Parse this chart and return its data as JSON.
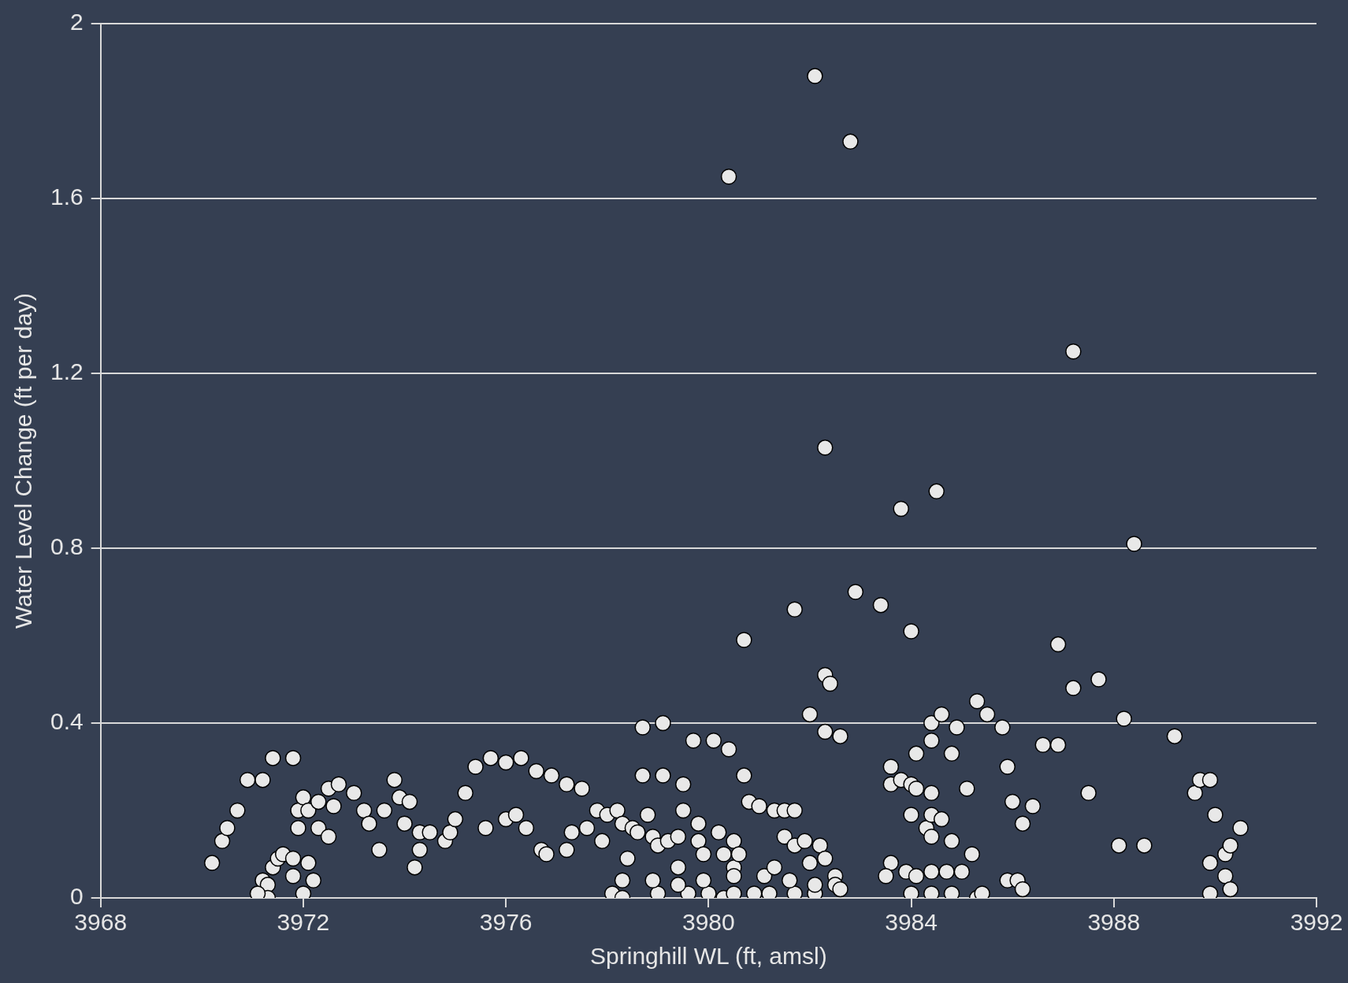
{
  "chart_data": {
    "type": "scatter",
    "xlabel": "Springhill WL (ft, amsl)",
    "ylabel": "Water Level Change (ft per day)",
    "xlim": [
      3968,
      3992
    ],
    "xticks": [
      3968,
      3972,
      3976,
      3980,
      3984,
      3988,
      3992
    ],
    "ylim": [
      0,
      2
    ],
    "yticks": [
      0,
      0.4,
      0.8,
      1.2,
      1.6,
      2
    ],
    "grid": "y",
    "legend": false,
    "marker": "circle",
    "series": [
      {
        "color": "#e8e8e8",
        "x": [
          3970.2,
          3970.4,
          3970.5,
          3970.7,
          3970.9,
          3971.2,
          3971.4,
          3971.8,
          3971.2,
          3971.3,
          3971.4,
          3971.5,
          3971.6,
          3971.8,
          3971.8,
          3972.1,
          3972.2,
          3972.0,
          3971.3,
          3971.1,
          3971.9,
          3971.9,
          3972.0,
          3972.1,
          3972.3,
          3972.3,
          3972.5,
          3972.5,
          3972.6,
          3972.7,
          3973.0,
          3973.2,
          3973.3,
          3973.5,
          3973.6,
          3973.8,
          3973.9,
          3974.0,
          3974.1,
          3974.2,
          3974.3,
          3974.3,
          3974.5,
          3974.8,
          3974.9,
          3975.0,
          3975.2,
          3975.4,
          3975.6,
          3975.7,
          3976.0,
          3976.3,
          3976.0,
          3976.2,
          3976.4,
          3976.6,
          3976.9,
          3976.7,
          3976.8,
          3977.2,
          3977.2,
          3977.5,
          3977.3,
          3977.6,
          3977.8,
          3977.9,
          3978.0,
          3978.2,
          3978.3,
          3978.4,
          3978.3,
          3978.5,
          3978.6,
          3978.7,
          3978.8,
          3978.9,
          3979.1,
          3979.1,
          3978.7,
          3979.0,
          3979.2,
          3979.4,
          3979.5,
          3979.5,
          3979.7,
          3979.8,
          3979.8,
          3980.1,
          3980.4,
          3980.2,
          3980.3,
          3980.5,
          3980.5,
          3980.7,
          3980.8,
          3981.0,
          3981.3,
          3981.5,
          3981.7,
          3981.5,
          3981.7,
          3981.9,
          3982.2,
          3982.3,
          3982.5,
          3982.5,
          3982.6,
          3978.1,
          3978.3,
          3979.0,
          3979.6,
          3980.0,
          3980.3,
          3980.5,
          3980.9,
          3981.2,
          3981.7,
          3982.1,
          3978.9,
          3979.4,
          3979.9,
          3980.5,
          3981.1,
          3981.6,
          3982.1,
          3979.4,
          3979.9,
          3980.6,
          3981.3,
          3982.0,
          3980.4,
          3980.7,
          3981.7,
          3982.1,
          3982.3,
          3982.8,
          3982.9,
          3983.4,
          3982.3,
          3982.4,
          3982.0,
          3982.3,
          3982.6,
          3983.8,
          3984.5,
          3984.0,
          3987.2,
          3988.4,
          3983.6,
          3983.6,
          3983.8,
          3984.1,
          3984.0,
          3984.1,
          3984.4,
          3984.4,
          3984.4,
          3984.6,
          3984.9,
          3984.8,
          3984.0,
          3984.3,
          3984.4,
          3984.6,
          3984.4,
          3984.8,
          3985.1,
          3983.6,
          3983.5,
          3983.9,
          3984.1,
          3984.4,
          3984.7,
          3985.0,
          3984.0,
          3984.4,
          3984.8,
          3985.2,
          3985.3,
          3985.5,
          3985.8,
          3985.9,
          3986.0,
          3986.2,
          3986.4,
          3986.6,
          3986.9,
          3986.9,
          3987.2,
          3987.7,
          3987.5,
          3988.2,
          3985.9,
          3986.1,
          3986.2,
          3985.3,
          3985.4,
          3988.1,
          3988.6,
          3989.2,
          3989.6,
          3989.7,
          3989.9,
          3990.0,
          3989.9,
          3989.9,
          3990.2,
          3990.3,
          3990.5,
          3990.2,
          3990.3
        ],
        "values": [
          0.08,
          0.13,
          0.16,
          0.2,
          0.27,
          0.27,
          0.32,
          0.32,
          0.04,
          0.03,
          0.07,
          0.09,
          0.1,
          0.09,
          0.05,
          0.08,
          0.04,
          0.01,
          0.0,
          0.01,
          0.2,
          0.16,
          0.23,
          0.2,
          0.22,
          0.16,
          0.14,
          0.25,
          0.21,
          0.26,
          0.24,
          0.2,
          0.17,
          0.11,
          0.2,
          0.27,
          0.23,
          0.17,
          0.22,
          0.07,
          0.11,
          0.15,
          0.15,
          0.13,
          0.15,
          0.18,
          0.24,
          0.3,
          0.16,
          0.32,
          0.31,
          0.32,
          0.18,
          0.19,
          0.16,
          0.29,
          0.28,
          0.11,
          0.1,
          0.11,
          0.26,
          0.25,
          0.15,
          0.16,
          0.2,
          0.13,
          0.19,
          0.2,
          0.17,
          0.09,
          0.04,
          0.16,
          0.15,
          0.28,
          0.19,
          0.14,
          0.28,
          0.4,
          0.39,
          0.12,
          0.13,
          0.14,
          0.26,
          0.2,
          0.36,
          0.17,
          0.13,
          0.36,
          0.34,
          0.15,
          0.1,
          0.13,
          0.07,
          0.28,
          0.22,
          0.21,
          0.2,
          0.2,
          0.2,
          0.14,
          0.12,
          0.13,
          0.12,
          0.09,
          0.05,
          0.03,
          0.02,
          0.01,
          0.0,
          0.01,
          0.01,
          0.01,
          0.0,
          0.01,
          0.01,
          0.01,
          0.01,
          0.01,
          0.04,
          0.03,
          0.04,
          0.05,
          0.05,
          0.04,
          0.03,
          0.07,
          0.1,
          0.1,
          0.07,
          0.08,
          1.65,
          0.59,
          0.66,
          1.88,
          1.03,
          1.73,
          0.7,
          0.67,
          0.51,
          0.49,
          0.42,
          0.38,
          0.37,
          0.89,
          0.93,
          0.61,
          1.25,
          0.81,
          0.3,
          0.26,
          0.27,
          0.33,
          0.26,
          0.25,
          0.24,
          0.36,
          0.4,
          0.42,
          0.39,
          0.33,
          0.19,
          0.16,
          0.19,
          0.18,
          0.14,
          0.13,
          0.25,
          0.08,
          0.05,
          0.06,
          0.05,
          0.06,
          0.06,
          0.06,
          0.01,
          0.01,
          0.01,
          0.1,
          0.45,
          0.42,
          0.39,
          0.3,
          0.22,
          0.17,
          0.21,
          0.35,
          0.35,
          0.58,
          0.48,
          0.5,
          0.24,
          0.41,
          0.04,
          0.04,
          0.02,
          0.0,
          0.01,
          0.12,
          0.12,
          0.37,
          0.24,
          0.27,
          0.27,
          0.19,
          0.08,
          0.01,
          0.1,
          0.12,
          0.16,
          0.05,
          0.02
        ]
      }
    ]
  }
}
